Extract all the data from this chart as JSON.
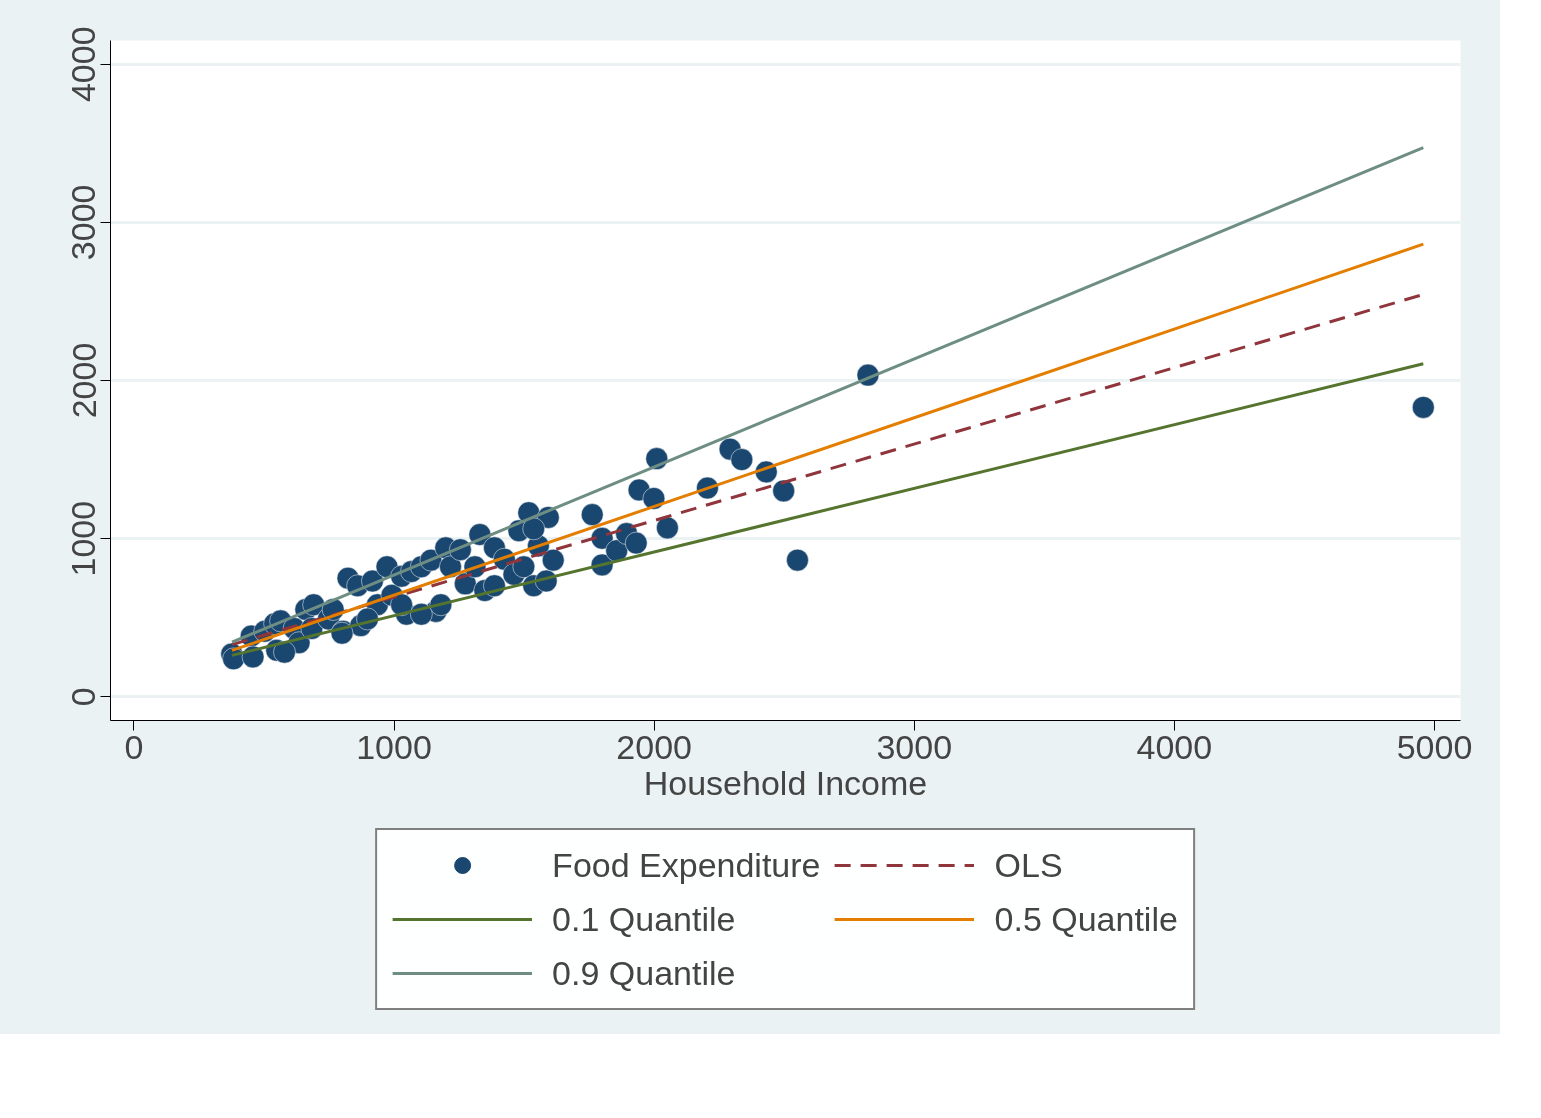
{
  "chart_data": {
    "type": "scatter",
    "xlabel": "Household Income",
    "xlim": [
      -90,
      5100
    ],
    "ylim": [
      -150,
      4150
    ],
    "xticks": [
      0,
      1000,
      2000,
      3000,
      4000,
      5000
    ],
    "yticks": [
      0,
      1000,
      2000,
      3000,
      4000
    ],
    "grid": "y",
    "legend": "bottom",
    "series": [
      {
        "name": "Food Expenditure",
        "marker": "circle",
        "color": "#1a476f",
        "x": [
          376,
          383,
          451,
          458,
          503,
          541,
          564,
          549,
          616,
          635,
          661,
          691,
          684,
          748,
          766,
          823,
          804,
          860,
          872,
          917,
          936,
          973,
          992,
          1029,
          1067,
          1048,
          1105,
          1142,
          1161,
          1199,
          1217,
          1255,
          1274,
          1311,
          1330,
          1349,
          1386,
          1386,
          1424,
          1461,
          1480,
          1499,
          1518,
          1537,
          1555,
          1593,
          1612,
          1537,
          1585,
          1762,
          1800,
          1800,
          1856,
          1894,
          1931,
          1942,
          1999,
          2010,
          2051,
          2205,
          2292,
          2337,
          2431,
          2498,
          2551,
          2822,
          4957,
          579,
          800,
          1029,
          1105,
          898,
          1180
        ],
        "values": [
          270,
          240,
          384,
          252,
          414,
          462,
          480,
          294,
          432,
          342,
          552,
          582,
          432,
          492,
          552,
          750,
          414,
          702,
          450,
          732,
          582,
          822,
          642,
          762,
          792,
          522,
          822,
          864,
          540,
          942,
          822,
          930,
          714,
          822,
          1026,
          672,
          942,
          702,
          870,
          774,
          1050,
          822,
          1164,
          702,
          954,
          1134,
          864,
          1062,
          732,
          1152,
          834,
          1002,
          924,
          1032,
          972,
          1308,
          1254,
          1506,
          1068,
          1320,
          1566,
          1500,
          1422,
          1302,
          864,
          2034,
          1830,
          282,
          402,
          582,
          522,
          492,
          582
        ]
      },
      {
        "name": "OLS",
        "type": "line",
        "line_style": "dashed",
        "color": "#90353b",
        "x": [
          377,
          4957
        ],
        "values": [
          330,
          2544
        ]
      },
      {
        "name": "0.1 Quantile",
        "type": "line",
        "line_style": "solid",
        "color": "#55752f",
        "x": [
          377,
          4957
        ],
        "values": [
          262,
          2106
        ]
      },
      {
        "name": "0.5 Quantile",
        "type": "line",
        "line_style": "solid",
        "color": "#e37e00",
        "x": [
          377,
          4957
        ],
        "values": [
          293,
          2862
        ]
      },
      {
        "name": "0.9 Quantile",
        "type": "line",
        "line_style": "solid",
        "color": "#6e8e84",
        "x": [
          377,
          4957
        ],
        "values": [
          345,
          3473
        ]
      }
    ]
  }
}
